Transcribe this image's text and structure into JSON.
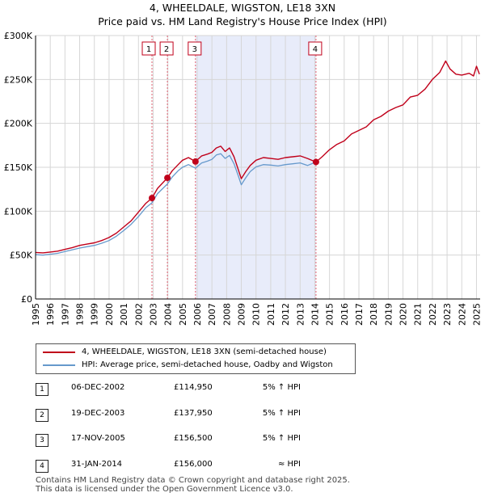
{
  "chart_data": {
    "type": "line",
    "title": "4, WHEELDALE, WIGSTON, LE18 3XN",
    "subtitle": "Price paid vs. HM Land Registry's House Price Index (HPI)",
    "xlabel": "",
    "ylabel": "",
    "xlim": [
      1995,
      2025.25
    ],
    "ylim": [
      0,
      300000
    ],
    "x_ticks": [
      "1995",
      "1996",
      "1997",
      "1998",
      "1999",
      "2000",
      "2001",
      "2002",
      "2003",
      "2004",
      "2005",
      "2006",
      "2007",
      "2008",
      "2009",
      "2010",
      "2011",
      "2012",
      "2013",
      "2014",
      "2015",
      "2016",
      "2017",
      "2018",
      "2019",
      "2020",
      "2021",
      "2022",
      "2023",
      "2024",
      "2025"
    ],
    "y_ticks": [
      {
        "value": 0,
        "label": "£0"
      },
      {
        "value": 50000,
        "label": "£50K"
      },
      {
        "value": 100000,
        "label": "£100K"
      },
      {
        "value": 150000,
        "label": "£150K"
      },
      {
        "value": 200000,
        "label": "£200K"
      },
      {
        "value": 250000,
        "label": "£250K"
      },
      {
        "value": 300000,
        "label": "£300K"
      }
    ],
    "grid": true,
    "shaded_region": {
      "from": 2005.88,
      "to": 2014.08,
      "color": "#e8ecfa"
    },
    "series": [
      {
        "name": "4, WHEELDALE, WIGSTON, LE18 3XN (semi-detached house)",
        "color": "#c0001a",
        "x": [
          1995.0,
          1995.5,
          1996.0,
          1996.5,
          1997.0,
          1997.5,
          1998.0,
          1998.5,
          1999.0,
          1999.5,
          2000.0,
          2000.5,
          2001.0,
          2001.5,
          2002.0,
          2002.5,
          2002.92,
          2003.3,
          2003.97,
          2004.3,
          2004.7,
          2005.0,
          2005.4,
          2005.88,
          2006.3,
          2006.7,
          2007.0,
          2007.3,
          2007.6,
          2007.9,
          2008.2,
          2008.5,
          2008.8,
          2009.0,
          2009.3,
          2009.6,
          2010.0,
          2010.5,
          2011.0,
          2011.5,
          2012.0,
          2012.5,
          2013.0,
          2013.5,
          2014.08,
          2014.5,
          2015.0,
          2015.5,
          2016.0,
          2016.5,
          2017.0,
          2017.5,
          2018.0,
          2018.5,
          2019.0,
          2019.5,
          2020.0,
          2020.5,
          2021.0,
          2021.5,
          2022.0,
          2022.5,
          2022.9,
          2023.2,
          2023.6,
          2024.0,
          2024.5,
          2024.8,
          2025.0,
          2025.2
        ],
        "values": [
          53000,
          52500,
          53500,
          54500,
          56500,
          58500,
          61000,
          62500,
          64000,
          66500,
          70000,
          75000,
          82000,
          89000,
          99000,
          109000,
          114950,
          126000,
          137950,
          146000,
          153000,
          158000,
          161000,
          156500,
          163000,
          165000,
          167000,
          172000,
          174000,
          168000,
          172000,
          162000,
          147000,
          137000,
          145000,
          152000,
          158000,
          161000,
          160000,
          159000,
          161000,
          162000,
          163000,
          160000,
          156000,
          162000,
          170000,
          176000,
          180000,
          188000,
          192000,
          196000,
          204000,
          208000,
          214000,
          218000,
          221000,
          230000,
          232000,
          239000,
          250000,
          258000,
          271000,
          262000,
          256000,
          255000,
          257000,
          254000,
          265000,
          256000
        ]
      },
      {
        "name": "HPI: Average price, semi-detached house, Oadby and Wigston",
        "color": "#6699cc",
        "x": [
          1995.0,
          1995.5,
          1996.0,
          1996.5,
          1997.0,
          1997.5,
          1998.0,
          1998.5,
          1999.0,
          1999.5,
          2000.0,
          2000.5,
          2001.0,
          2001.5,
          2002.0,
          2002.5,
          2002.92,
          2003.3,
          2003.97,
          2004.3,
          2004.7,
          2005.0,
          2005.4,
          2005.88,
          2006.3,
          2006.7,
          2007.0,
          2007.3,
          2007.6,
          2007.9,
          2008.2,
          2008.5,
          2008.8,
          2009.0,
          2009.3,
          2009.6,
          2010.0,
          2010.5,
          2011.0,
          2011.5,
          2012.0,
          2012.5,
          2013.0,
          2013.5,
          2014.08
        ],
        "values": [
          50500,
          50000,
          51000,
          52000,
          54000,
          56000,
          58000,
          59500,
          61000,
          63500,
          66500,
          71500,
          78000,
          85000,
          94000,
          104000,
          109500,
          120000,
          131000,
          139000,
          146000,
          150000,
          153000,
          149000,
          155000,
          157000,
          159000,
          164000,
          165500,
          160000,
          163500,
          154000,
          140000,
          130000,
          138000,
          145000,
          150500,
          153000,
          152500,
          151500,
          153000,
          154000,
          155000,
          152000,
          156000
        ]
      }
    ],
    "sale_markers": [
      {
        "label": "1",
        "x": 2002.92,
        "value": 114950
      },
      {
        "label": "2",
        "x": 2003.97,
        "value": 137950
      },
      {
        "label": "3",
        "x": 2005.88,
        "value": 156500
      },
      {
        "label": "4",
        "x": 2014.08,
        "value": 156000
      }
    ]
  },
  "legend": [
    {
      "label": "4, WHEELDALE, WIGSTON, LE18 3XN (semi-detached house)",
      "color": "#c0001a"
    },
    {
      "label": "HPI: Average price, semi-detached house, Oadby and Wigston",
      "color": "#6699cc"
    }
  ],
  "sales": [
    {
      "num": "1",
      "date": "06-DEC-2002",
      "price": "£114,950",
      "hpi": "5% ↑ HPI"
    },
    {
      "num": "2",
      "date": "19-DEC-2003",
      "price": "£137,950",
      "hpi": "5% ↑ HPI"
    },
    {
      "num": "3",
      "date": "17-NOV-2005",
      "price": "£156,500",
      "hpi": "5% ↑ HPI"
    },
    {
      "num": "4",
      "date": "31-JAN-2014",
      "price": "£156,000",
      "hpi": "≈ HPI"
    }
  ],
  "footer": {
    "line1": "Contains HM Land Registry data © Crown copyright and database right 2025.",
    "line2": "This data is licensed under the Open Government Licence v3.0."
  }
}
